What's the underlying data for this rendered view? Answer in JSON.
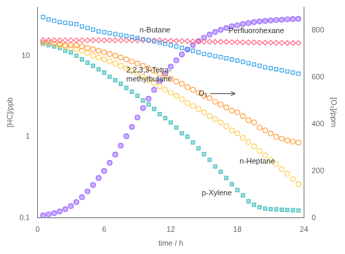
{
  "chart_data": {
    "type": "scatter",
    "xlabel": "time / h",
    "ylabel": "[HC]/ppb",
    "y2label": "[O₂]/ppm",
    "log": "y",
    "grid": false,
    "xlim": [
      0,
      24
    ],
    "xticks": [
      0,
      6,
      12,
      18,
      24
    ],
    "ylim": [
      0.1,
      40
    ],
    "yticks": [
      0.1,
      1,
      10
    ],
    "y2lim": [
      0,
      900
    ],
    "y2ticks": [
      0,
      200,
      400,
      600,
      800
    ],
    "x": [
      0.5,
      1.0,
      1.5,
      2.0,
      2.5,
      3.0,
      3.5,
      4.0,
      4.5,
      5.0,
      5.5,
      6.0,
      6.5,
      7.0,
      7.5,
      8.0,
      8.5,
      9.0,
      9.5,
      10.0,
      10.5,
      11.0,
      11.5,
      12.0,
      12.5,
      13.0,
      13.5,
      14.0,
      14.5,
      15.0,
      15.5,
      16.0,
      16.5,
      17.0,
      17.5,
      18.0,
      18.5,
      19.0,
      19.5,
      20.0,
      20.5,
      21.0,
      21.5,
      22.0,
      22.5,
      23.0,
      23.5
    ],
    "series": [
      {
        "marker": "square-open",
        "values": [
          30,
          28,
          27,
          26,
          25.5,
          25,
          24.5,
          23,
          22,
          21,
          20,
          19.5,
          19,
          18.5,
          18,
          17.5,
          17,
          16.5,
          16,
          15.5,
          15,
          14.5,
          14.0,
          13.5,
          13,
          12.5,
          12,
          11.5,
          11,
          10.5,
          10.2,
          9.9,
          9.6,
          9.3,
          9.0,
          8.7,
          8.4,
          8.1,
          7.8,
          7.5,
          7.2,
          7.0,
          6.8,
          6.6,
          6.4,
          6.2,
          6.0
        ]
      },
      {
        "marker": "diamond-open",
        "values": [
          15.5,
          15.5,
          15.5,
          15.5,
          15.5,
          15.5,
          15.5,
          15.5,
          15.5,
          15.5,
          15.5,
          15.5,
          15.5,
          15.5,
          15.5,
          15.5,
          15.5,
          15.5,
          15.5,
          15.5,
          15.5,
          15.5,
          15.3,
          15.3,
          15.2,
          15.2,
          15.1,
          15.0,
          15.0,
          14.9,
          14.9,
          14.8,
          14.8,
          14.8,
          14.7,
          14.7,
          14.6,
          14.6,
          14.6,
          14.5,
          14.5,
          14.5,
          14.4,
          14.4,
          14.3,
          14.3,
          14.3
        ]
      },
      {
        "marker": "circle-open",
        "values": [
          14.5,
          14.5,
          14.0,
          14.0,
          13.5,
          13.5,
          13.5,
          13.0,
          12.5,
          12.0,
          11.5,
          11.0,
          10.5,
          10.0,
          9.5,
          9.0,
          8.5,
          8.0,
          7.5,
          7.0,
          6.5,
          6.0,
          5.6,
          5.2,
          4.8,
          4.5,
          4.1,
          3.8,
          3.5,
          3.2,
          3.0,
          2.7,
          2.5,
          2.3,
          2.1,
          2.0,
          1.8,
          1.6,
          1.5,
          1.3,
          1.2,
          1.1,
          1.0,
          0.95,
          0.9,
          0.87,
          0.85
        ]
      },
      {
        "marker": "circle-open",
        "values": [
          14.5,
          14.5,
          14.0,
          13.5,
          13.0,
          12.5,
          12.0,
          11.5,
          10.8,
          10.0,
          9.5,
          9.0,
          8.5,
          8.0,
          7.5,
          7.0,
          6.5,
          6.0,
          5.5,
          5.0,
          4.6,
          4.2,
          3.8,
          3.5,
          3.2,
          2.9,
          2.6,
          2.4,
          2.2,
          2.0,
          1.8,
          1.65,
          1.5,
          1.35,
          1.2,
          1.1,
          0.97,
          0.86,
          0.76,
          0.67,
          0.59,
          0.52,
          0.46,
          0.4,
          0.35,
          0.3,
          0.26
        ]
      },
      {
        "marker": "square",
        "values": [
          14.0,
          13.5,
          13.0,
          12.5,
          11.5,
          11.0,
          10.0,
          9.0,
          8.2,
          7.5,
          6.8,
          6.2,
          5.5,
          5.0,
          4.5,
          4.0,
          3.6,
          3.2,
          2.8,
          2.5,
          2.2,
          1.9,
          1.7,
          1.5,
          1.3,
          1.1,
          1.0,
          0.85,
          0.72,
          0.61,
          0.52,
          0.43,
          0.37,
          0.31,
          0.26,
          0.22,
          0.19,
          0.16,
          0.145,
          0.135,
          0.13,
          0.128,
          0.127,
          0.126,
          0.125,
          0.124,
          0.123
        ]
      },
      {
        "marker": "circle",
        "axis": "y2",
        "values": [
          10,
          15,
          20,
          27,
          37,
          50,
          67,
          88,
          113,
          140,
          170,
          200,
          235,
          270,
          308,
          348,
          388,
          428,
          468,
          508,
          546,
          582,
          615,
          645,
          672,
          697,
          718,
          737,
          754,
          769,
          782,
          793,
          802,
          810,
          817,
          822,
          827,
          831,
          835,
          838,
          840,
          842,
          844,
          845,
          847,
          848,
          849
        ]
      }
    ],
    "annotations": [
      {
        "text": "n-Butane",
        "x": 9.2,
        "y": 20.5
      },
      {
        "text": "Perfluorohexane",
        "x": 17.2,
        "y": 20.0
      },
      {
        "text": "2,2,3,3-Tetra-\nmethylbutane",
        "x": 8.0,
        "y": 5.8
      },
      {
        "text": "n-Heptane",
        "x": 18.2,
        "y": 0.5
      },
      {
        "text": "p-Xylene",
        "x": 14.8,
        "y": 0.2
      },
      {
        "text": "O₂",
        "x": 14.5,
        "y": 530,
        "axis": "y2",
        "arrow_to": [
          17.8,
          530
        ]
      }
    ]
  }
}
